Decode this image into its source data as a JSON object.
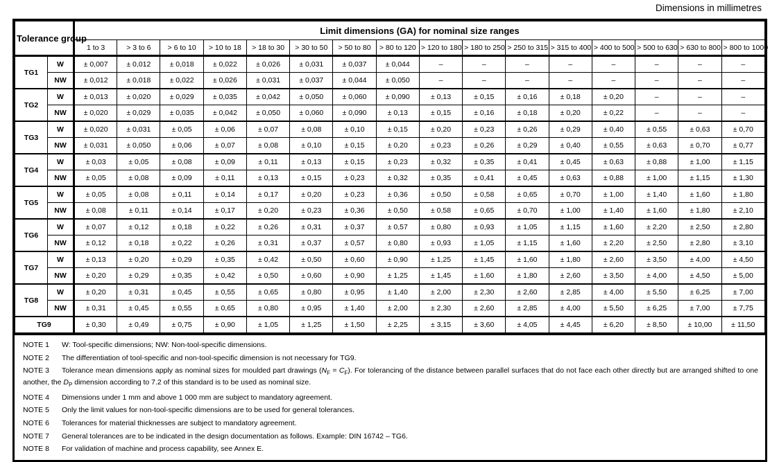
{
  "caption": "Dimensions in millimetres",
  "table": {
    "corner_header": "Tolerance group",
    "main_header": "Limit dimensions (GA) for nominal size ranges",
    "size_ranges": [
      "1 to 3",
      "> 3 to 6",
      "> 6 to 10",
      "> 10 to 18",
      "> 18 to 30",
      "> 30 to 50",
      "> 50 to 80",
      "> 80 to 120",
      "> 120 to 180",
      "> 180 to 250",
      "> 250 to 315",
      "> 315 to 400",
      "> 400 to 500",
      "> 500 to 630",
      "> 630 to 800",
      "> 800 to 1000"
    ],
    "groups": [
      {
        "label": "TG1",
        "rows": [
          {
            "type": "W",
            "values": [
              "± 0,007",
              "± 0,012",
              "± 0,018",
              "± 0,022",
              "± 0,026",
              "± 0,031",
              "± 0,037",
              "± 0,044",
              "–",
              "–",
              "–",
              "–",
              "–",
              "–",
              "–",
              "–"
            ]
          },
          {
            "type": "NW",
            "values": [
              "± 0,012",
              "± 0,018",
              "± 0,022",
              "± 0,026",
              "± 0,031",
              "± 0,037",
              "± 0,044",
              "± 0,050",
              "–",
              "–",
              "–",
              "–",
              "–",
              "–",
              "–",
              "–"
            ]
          }
        ]
      },
      {
        "label": "TG2",
        "rows": [
          {
            "type": "W",
            "values": [
              "± 0,013",
              "± 0,020",
              "± 0,029",
              "± 0,035",
              "± 0,042",
              "± 0,050",
              "± 0,060",
              "± 0,090",
              "± 0,13",
              "± 0,15",
              "± 0,16",
              "± 0,18",
              "± 0,20",
              "–",
              "–",
              "–"
            ]
          },
          {
            "type": "NW",
            "values": [
              "± 0,020",
              "± 0,029",
              "± 0,035",
              "± 0,042",
              "± 0,050",
              "± 0,060",
              "± 0,090",
              "± 0,13",
              "± 0,15",
              "± 0,16",
              "± 0,18",
              "± 0,20",
              "± 0,22",
              "–",
              "–",
              "–"
            ]
          }
        ]
      },
      {
        "label": "TG3",
        "rows": [
          {
            "type": "W",
            "values": [
              "± 0,020",
              "± 0,031",
              "± 0,05",
              "± 0,06",
              "± 0,07",
              "± 0,08",
              "± 0,10",
              "± 0,15",
              "± 0,20",
              "± 0,23",
              "± 0,26",
              "± 0,29",
              "± 0,40",
              "± 0,55",
              "± 0,63",
              "± 0,70"
            ]
          },
          {
            "type": "NW",
            "values": [
              "± 0,031",
              "± 0,050",
              "± 0,06",
              "± 0,07",
              "± 0,08",
              "± 0,10",
              "± 0,15",
              "± 0,20",
              "± 0,23",
              "± 0,26",
              "± 0,29",
              "± 0,40",
              "± 0,55",
              "± 0,63",
              "± 0,70",
              "± 0,77"
            ]
          }
        ]
      },
      {
        "label": "TG4",
        "rows": [
          {
            "type": "W",
            "values": [
              "± 0,03",
              "± 0,05",
              "± 0,08",
              "± 0,09",
              "± 0,11",
              "± 0,13",
              "± 0,15",
              "± 0,23",
              "± 0,32",
              "± 0,35",
              "± 0,41",
              "± 0,45",
              "± 0,63",
              "± 0,88",
              "± 1,00",
              "± 1,15"
            ]
          },
          {
            "type": "NW",
            "values": [
              "± 0,05",
              "± 0,08",
              "± 0,09",
              "± 0,11",
              "± 0,13",
              "± 0,15",
              "± 0,23",
              "± 0,32",
              "± 0,35",
              "± 0,41",
              "± 0,45",
              "± 0,63",
              "± 0,88",
              "± 1,00",
              "± 1,15",
              "± 1,30"
            ]
          }
        ]
      },
      {
        "label": "TG5",
        "rows": [
          {
            "type": "W",
            "values": [
              "± 0,05",
              "± 0,08",
              "± 0,11",
              "± 0,14",
              "± 0,17",
              "± 0,20",
              "± 0,23",
              "± 0,36",
              "± 0,50",
              "± 0,58",
              "± 0,65",
              "± 0,70",
              "± 1,00",
              "± 1,40",
              "± 1,60",
              "± 1,80"
            ]
          },
          {
            "type": "NW",
            "values": [
              "± 0,08",
              "± 0,11",
              "± 0,14",
              "± 0,17",
              "± 0,20",
              "± 0,23",
              "± 0,36",
              "± 0,50",
              "± 0,58",
              "± 0,65",
              "± 0,70",
              "± 1,00",
              "± 1,40",
              "± 1,60",
              "± 1,80",
              "± 2,10"
            ]
          }
        ]
      },
      {
        "label": "TG6",
        "rows": [
          {
            "type": "W",
            "values": [
              "± 0,07",
              "± 0,12",
              "± 0,18",
              "± 0,22",
              "± 0,26",
              "± 0,31",
              "± 0,37",
              "± 0,57",
              "± 0,80",
              "± 0,93",
              "± 1,05",
              "± 1,15",
              "± 1,60",
              "± 2,20",
              "± 2,50",
              "± 2,80"
            ]
          },
          {
            "type": "NW",
            "values": [
              "± 0,12",
              "± 0,18",
              "± 0,22",
              "± 0,26",
              "± 0,31",
              "± 0,37",
              "± 0,57",
              "± 0,80",
              "± 0,93",
              "± 1,05",
              "± 1,15",
              "± 1,60",
              "± 2,20",
              "± 2,50",
              "± 2,80",
              "± 3,10"
            ]
          }
        ]
      },
      {
        "label": "TG7",
        "rows": [
          {
            "type": "W",
            "values": [
              "± 0,13",
              "± 0,20",
              "± 0,29",
              "± 0,35",
              "± 0,42",
              "± 0,50",
              "± 0,60",
              "± 0,90",
              "± 1,25",
              "± 1,45",
              "± 1,60",
              "± 1,80",
              "± 2,60",
              "± 3,50",
              "± 4,00",
              "± 4,50"
            ]
          },
          {
            "type": "NW",
            "values": [
              "± 0,20",
              "± 0,29",
              "± 0,35",
              "± 0,42",
              "± 0,50",
              "± 0,60",
              "± 0,90",
              "± 1,25",
              "± 1,45",
              "± 1,60",
              "± 1,80",
              "± 2,60",
              "± 3,50",
              "± 4,00",
              "± 4,50",
              "± 5,00"
            ]
          }
        ]
      },
      {
        "label": "TG8",
        "rows": [
          {
            "type": "W",
            "values": [
              "± 0,20",
              "± 0,31",
              "± 0,45",
              "± 0,55",
              "± 0,65",
              "± 0,80",
              "± 0,95",
              "± 1,40",
              "± 2,00",
              "± 2,30",
              "± 2,60",
              "± 2,85",
              "± 4,00",
              "± 5,50",
              "± 6,25",
              "± 7,00"
            ]
          },
          {
            "type": "NW",
            "values": [
              "± 0,31",
              "± 0,45",
              "± 0,55",
              "± 0,65",
              "± 0,80",
              "± 0,95",
              "± 1,40",
              "± 2,00",
              "± 2,30",
              "± 2,60",
              "± 2,85",
              "± 4,00",
              "± 5,50",
              "± 6,25",
              "± 7,00",
              "± 7,75"
            ]
          }
        ]
      },
      {
        "label": "TG9",
        "rows": [
          {
            "type": "",
            "values": [
              "± 0,30",
              "± 0,49",
              "± 0,75",
              "± 0,90",
              "± 1,05",
              "± 1,25",
              "± 1,50",
              "± 2,25",
              "± 3,15",
              "± 3,60",
              "± 4,05",
              "± 4,45",
              "± 6,20",
              "± 8,50",
              "± 10,00",
              "± 11,50"
            ]
          }
        ]
      }
    ]
  },
  "notes": [
    {
      "label": "NOTE 1",
      "text": "W: Tool-specific dimensions; NW: Non-tool-specific dimensions."
    },
    {
      "label": "NOTE 2",
      "text": "The differentiation of tool-specific and non-tool-specific dimension is not necessary for TG9."
    },
    {
      "label": "NOTE 3",
      "text": "Tolerance mean dimensions apply as nominal sizes for moulded part drawings (<i>N</i><sub>F</sub> = <i>C</i><sub>F</sub>). For tolerancing of the distance between parallel surfaces that do not face each other directly but are arranged shifted to one another, the <i>D</i><sub>P</sub> dimension according to 7.2 of this standard is to be used as nominal size."
    },
    {
      "label": "NOTE 4",
      "text": "Dimensions under 1 mm and above 1 000 mm are subject to mandatory agreement."
    },
    {
      "label": "NOTE 5",
      "text": "Only the limit values for non-tool-specific dimensions are to be used for general tolerances."
    },
    {
      "label": "NOTE 6",
      "text": "Tolerances for material thicknesses are subject to mandatory agreement."
    },
    {
      "label": "NOTE 7",
      "text": "General tolerances are to be indicated in the design documentation as follows. Example: DIN 16742 – TG6."
    },
    {
      "label": "NOTE 8",
      "text": "For validation of machine and process capability, see Annex E."
    }
  ]
}
